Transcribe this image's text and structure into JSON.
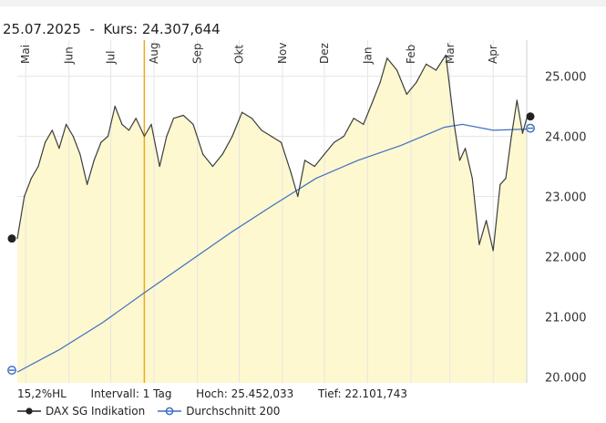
{
  "header": {
    "date": "25.07.2025",
    "separator": "-",
    "price_label": "Kurs:",
    "price_value": "24.307,644"
  },
  "footer": {
    "hl": "15,2%HL",
    "interval": "Intervall: 1 Tag",
    "high": "Hoch: 25.452,033",
    "low": "Tief: 22.101,743"
  },
  "colors": {
    "price_line": "#3d3d3d",
    "area_fill": "#fdf8cf",
    "average_line": "#3f6fc4",
    "cursor": "#f0a81c",
    "grid": "#e6e6e6"
  },
  "chart_data": {
    "type": "line",
    "x": [
      "Mai",
      "Jun",
      "Jul",
      "Aug",
      "Sep",
      "Okt",
      "Nov",
      "Dez",
      "Jan",
      "Feb",
      "Mar",
      "Apr"
    ],
    "x_start": "2024-04-25",
    "x_end": "2025-04-25",
    "ylim": [
      19900,
      25600
    ],
    "yticks": [
      20000,
      21000,
      22000,
      23000,
      24000,
      25000
    ],
    "ytick_labels": [
      "20.000",
      "21.000",
      "22.000",
      "23.000",
      "24.000",
      "25.000"
    ],
    "cursor_date": "2024-07-25",
    "area_under_price": true,
    "grid": true,
    "series": [
      {
        "name": "DAX SG Indikation",
        "style": "line-dot",
        "points": [
          [
            "2024-04-25",
            22300
          ],
          [
            "2024-04-30",
            23000
          ],
          [
            "2024-05-05",
            23300
          ],
          [
            "2024-05-10",
            23500
          ],
          [
            "2024-05-15",
            23900
          ],
          [
            "2024-05-20",
            24100
          ],
          [
            "2024-05-25",
            23800
          ],
          [
            "2024-05-30",
            24200
          ],
          [
            "2024-06-04",
            24000
          ],
          [
            "2024-06-09",
            23700
          ],
          [
            "2024-06-14",
            23200
          ],
          [
            "2024-06-19",
            23600
          ],
          [
            "2024-06-24",
            23900
          ],
          [
            "2024-06-29",
            24000
          ],
          [
            "2024-07-04",
            24500
          ],
          [
            "2024-07-09",
            24200
          ],
          [
            "2024-07-14",
            24100
          ],
          [
            "2024-07-19",
            24300
          ],
          [
            "2024-07-25",
            24000
          ],
          [
            "2024-07-30",
            24200
          ],
          [
            "2024-08-05",
            23500
          ],
          [
            "2024-08-10",
            24000
          ],
          [
            "2024-08-15",
            24300
          ],
          [
            "2024-08-22",
            24350
          ],
          [
            "2024-08-29",
            24200
          ],
          [
            "2024-09-05",
            23700
          ],
          [
            "2024-09-12",
            23500
          ],
          [
            "2024-09-19",
            23700
          ],
          [
            "2024-09-26",
            24000
          ],
          [
            "2024-10-03",
            24400
          ],
          [
            "2024-10-10",
            24300
          ],
          [
            "2024-10-17",
            24100
          ],
          [
            "2024-10-24",
            24000
          ],
          [
            "2024-10-31",
            23900
          ],
          [
            "2024-11-07",
            23400
          ],
          [
            "2024-11-12",
            23000
          ],
          [
            "2024-11-17",
            23600
          ],
          [
            "2024-11-24",
            23500
          ],
          [
            "2024-12-01",
            23700
          ],
          [
            "2024-12-08",
            23900
          ],
          [
            "2024-12-15",
            24000
          ],
          [
            "2024-12-22",
            24300
          ],
          [
            "2024-12-29",
            24200
          ],
          [
            "2025-01-05",
            24600
          ],
          [
            "2025-01-10",
            24900
          ],
          [
            "2025-01-15",
            25300
          ],
          [
            "2025-01-22",
            25100
          ],
          [
            "2025-01-29",
            24700
          ],
          [
            "2025-02-05",
            24900
          ],
          [
            "2025-02-12",
            25200
          ],
          [
            "2025-02-19",
            25100
          ],
          [
            "2025-02-26",
            25350
          ],
          [
            "2025-03-04",
            24200
          ],
          [
            "2025-03-08",
            23600
          ],
          [
            "2025-03-12",
            23800
          ],
          [
            "2025-03-17",
            23300
          ],
          [
            "2025-03-22",
            22200
          ],
          [
            "2025-03-27",
            22600
          ],
          [
            "2025-04-01",
            22100
          ],
          [
            "2025-04-06",
            23200
          ],
          [
            "2025-04-10",
            23300
          ],
          [
            "2025-04-14",
            24000
          ],
          [
            "2025-04-18",
            24600
          ],
          [
            "2025-04-22",
            24050
          ],
          [
            "2025-04-25",
            24300
          ]
        ]
      },
      {
        "name": "Durchschnitt 200",
        "style": "line-ring",
        "points": [
          [
            "2024-04-25",
            20080
          ],
          [
            "2024-05-25",
            20450
          ],
          [
            "2024-06-25",
            20900
          ],
          [
            "2024-07-25",
            21400
          ],
          [
            "2024-08-25",
            21900
          ],
          [
            "2024-09-25",
            22400
          ],
          [
            "2024-10-25",
            22850
          ],
          [
            "2024-11-25",
            23300
          ],
          [
            "2024-12-25",
            23600
          ],
          [
            "2025-01-25",
            23850
          ],
          [
            "2025-02-25",
            24150
          ],
          [
            "2025-03-10",
            24200
          ],
          [
            "2025-04-01",
            24100
          ],
          [
            "2025-04-25",
            24120
          ]
        ]
      }
    ]
  }
}
